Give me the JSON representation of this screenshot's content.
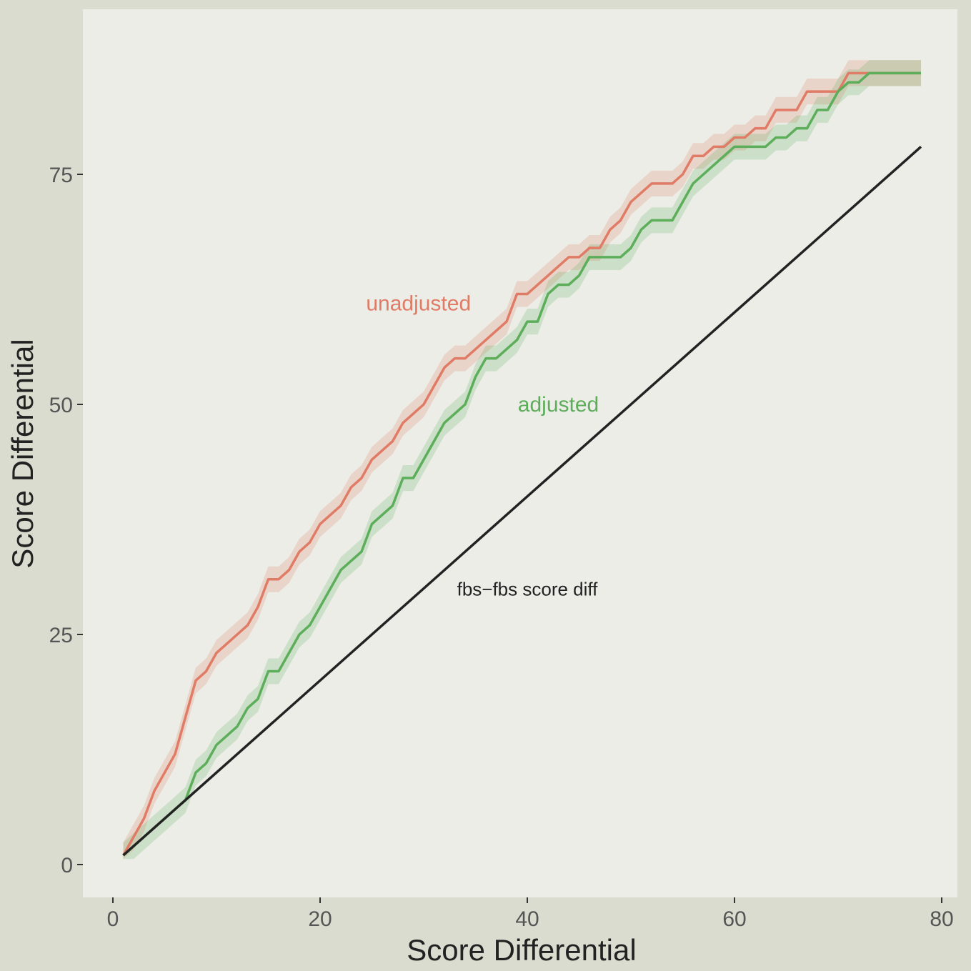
{
  "chart_data": {
    "type": "line",
    "title": "",
    "xlabel": "Score Differential",
    "ylabel": "Score Differential",
    "xlim": [
      -2,
      82
    ],
    "ylim": [
      -3,
      92
    ],
    "x_ticks": [
      0,
      20,
      40,
      60,
      80
    ],
    "y_ticks": [
      0,
      25,
      50,
      75
    ],
    "grid": false,
    "legend": "none (direct labels)",
    "colors": {
      "panel": "#ECEDE7",
      "background": "#D9DCCF",
      "unadjusted": "#E07B66",
      "adjusted": "#5DAE5A",
      "reference": "#222222"
    },
    "series": [
      {
        "name": "unadjusted",
        "color": "#E07B66",
        "band": 1.4,
        "x_start": 1,
        "values": [
          1,
          3,
          5,
          8,
          10,
          12,
          16,
          20,
          21,
          23,
          24,
          25,
          26,
          28,
          31,
          31,
          32,
          34,
          35,
          37,
          38,
          39,
          41,
          42,
          44,
          45,
          46,
          48,
          49,
          50,
          52,
          54,
          55,
          55,
          56,
          57,
          58,
          59,
          62,
          62,
          63,
          64,
          65,
          66,
          66,
          67,
          67,
          69,
          70,
          72,
          73,
          74,
          74,
          74,
          75,
          77,
          77,
          78,
          78,
          79,
          79,
          80,
          80,
          82,
          82,
          82,
          84,
          84,
          84,
          84,
          86,
          86,
          86,
          86,
          86,
          86,
          86,
          86
        ]
      },
      {
        "name": "adjusted",
        "color": "#5DAE5A",
        "band": 1.4,
        "x_start": 1,
        "values": [
          1,
          2,
          3,
          4,
          5,
          6,
          7,
          10,
          11,
          13,
          14,
          15,
          17,
          18,
          21,
          21,
          23,
          25,
          26,
          28,
          30,
          32,
          33,
          34,
          37,
          38,
          39,
          42,
          42,
          44,
          46,
          48,
          49,
          50,
          53,
          55,
          55,
          56,
          57,
          59,
          59,
          62,
          63,
          63,
          64,
          66,
          66,
          66,
          66,
          67,
          69,
          70,
          70,
          70,
          72,
          74,
          75,
          76,
          77,
          78,
          78,
          78,
          78,
          79,
          79,
          80,
          80,
          82,
          82,
          84,
          85,
          85,
          86,
          86,
          86,
          86,
          86,
          86
        ]
      },
      {
        "name": "fbs−fbs score diff",
        "color": "#222222",
        "x": [
          1,
          78
        ],
        "values": [
          1,
          78
        ]
      }
    ],
    "annotations": [
      {
        "text": "unadjusted",
        "x": 29.5,
        "y": 61
      },
      {
        "text": "adjusted",
        "x": 43,
        "y": 50
      },
      {
        "text": "fbs−fbs score diff",
        "x": 40,
        "y": 30
      }
    ]
  }
}
